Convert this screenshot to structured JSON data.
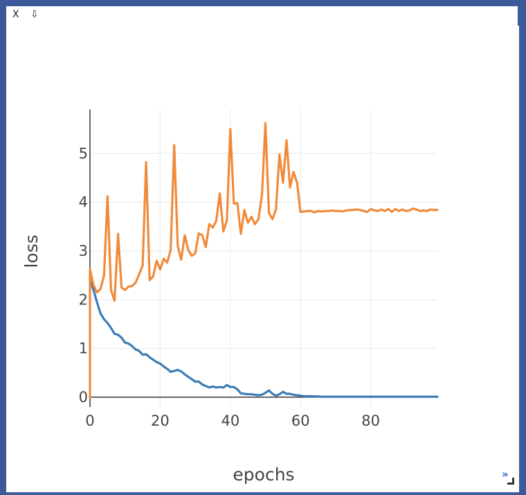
{
  "toolbar": {
    "close_label": "X",
    "download_label": "⇩"
  },
  "corner": {
    "expand_label": "»",
    "resize_icon": "resize-grip-icon"
  },
  "colors": {
    "train": "#3b7cb6",
    "val": "#f08a3a",
    "grid": "#e8e8e8",
    "axis": "#333333",
    "text": "#444444",
    "frame": "#3c5a99"
  },
  "chart_data": {
    "type": "line",
    "xlabel": "epochs",
    "ylabel": "loss",
    "xlim": [
      0,
      99
    ],
    "ylim": [
      -0.2,
      5.9
    ],
    "xticks": [
      0,
      20,
      40,
      60,
      80
    ],
    "yticks": [
      0,
      1,
      2,
      3,
      4,
      5
    ],
    "grid": true,
    "series": [
      {
        "color": "#3b7cb6",
        "x": [
          0,
          1,
          2,
          3,
          4,
          5,
          6,
          7,
          8,
          9,
          10,
          11,
          12,
          13,
          14,
          15,
          16,
          17,
          18,
          19,
          20,
          21,
          22,
          23,
          24,
          25,
          26,
          27,
          28,
          29,
          30,
          31,
          32,
          33,
          34,
          35,
          36,
          37,
          38,
          39,
          40,
          41,
          42,
          43,
          44,
          45,
          46,
          47,
          48,
          49,
          50,
          51,
          52,
          53,
          54,
          55,
          56,
          57,
          58,
          59,
          60,
          61,
          62,
          63,
          64,
          65,
          66,
          67,
          68,
          69,
          70,
          71,
          72,
          73,
          74,
          75,
          76,
          77,
          78,
          79,
          80,
          81,
          82,
          83,
          84,
          85,
          86,
          87,
          88,
          89,
          90,
          91,
          92,
          93,
          94,
          95,
          96,
          97,
          98,
          99
        ],
        "y": [
          2.4,
          2.2,
          1.95,
          1.72,
          1.6,
          1.52,
          1.42,
          1.3,
          1.28,
          1.22,
          1.12,
          1.1,
          1.05,
          0.98,
          0.95,
          0.87,
          0.88,
          0.82,
          0.77,
          0.72,
          0.69,
          0.63,
          0.58,
          0.52,
          0.54,
          0.56,
          0.53,
          0.47,
          0.42,
          0.37,
          0.32,
          0.32,
          0.26,
          0.23,
          0.2,
          0.22,
          0.2,
          0.21,
          0.2,
          0.25,
          0.21,
          0.21,
          0.16,
          0.08,
          0.07,
          0.06,
          0.06,
          0.05,
          0.04,
          0.05,
          0.09,
          0.14,
          0.07,
          0.03,
          0.06,
          0.11,
          0.07,
          0.07,
          0.05,
          0.04,
          0.03,
          0.02,
          0.02,
          0.02,
          0.015,
          0.015,
          0.01,
          0.01,
          0.01,
          0.01,
          0.01,
          0.01,
          0.01,
          0.01,
          0.01,
          0.01,
          0.01,
          0.01,
          0.01,
          0.01,
          0.01,
          0.01,
          0.01,
          0.01,
          0.01,
          0.01,
          0.01,
          0.01,
          0.01,
          0.01,
          0.01,
          0.01,
          0.01,
          0.01,
          0.01,
          0.01,
          0.01,
          0.01,
          0.01,
          0.01
        ]
      },
      {
        "color": "#f08a3a",
        "x": [
          0,
          0,
          1,
          2,
          3,
          4,
          5,
          6,
          7,
          8,
          9,
          10,
          11,
          12,
          13,
          14,
          15,
          16,
          17,
          18,
          19,
          20,
          21,
          22,
          23,
          24,
          25,
          26,
          27,
          28,
          29,
          30,
          31,
          32,
          33,
          34,
          35,
          36,
          37,
          38,
          39,
          40,
          41,
          42,
          43,
          44,
          45,
          46,
          47,
          48,
          49,
          50,
          51,
          52,
          53,
          54,
          55,
          56,
          57,
          58,
          59,
          60,
          61,
          62,
          63,
          64,
          65,
          66,
          67,
          68,
          69,
          70,
          71,
          72,
          73,
          74,
          75,
          76,
          77,
          78,
          79,
          80,
          81,
          82,
          83,
          84,
          85,
          86,
          87,
          88,
          89,
          90,
          91,
          92,
          93,
          94,
          95,
          96,
          97,
          98,
          99
        ],
        "y": [
          0.0,
          2.62,
          2.3,
          2.15,
          2.22,
          2.5,
          4.12,
          2.2,
          1.98,
          3.35,
          2.25,
          2.2,
          2.27,
          2.28,
          2.35,
          2.52,
          2.7,
          4.82,
          2.4,
          2.48,
          2.8,
          2.62,
          2.84,
          2.76,
          3.02,
          5.17,
          3.1,
          2.82,
          3.32,
          3.02,
          2.9,
          2.95,
          3.36,
          3.32,
          3.08,
          3.55,
          3.48,
          3.62,
          4.18,
          3.4,
          3.62,
          5.5,
          3.97,
          3.98,
          3.35,
          3.84,
          3.58,
          3.7,
          3.55,
          3.65,
          4.15,
          5.62,
          3.78,
          3.65,
          3.85,
          4.98,
          4.4,
          5.27,
          4.3,
          4.62,
          4.4,
          3.8,
          3.81,
          3.82,
          3.82,
          3.79,
          3.82,
          3.81,
          3.82,
          3.82,
          3.83,
          3.82,
          3.82,
          3.81,
          3.83,
          3.84,
          3.84,
          3.85,
          3.84,
          3.82,
          3.8,
          3.86,
          3.83,
          3.82,
          3.85,
          3.82,
          3.86,
          3.8,
          3.86,
          3.82,
          3.85,
          3.82,
          3.83,
          3.87,
          3.85,
          3.82,
          3.83,
          3.82,
          3.85,
          3.84,
          3.84
        ]
      }
    ]
  }
}
